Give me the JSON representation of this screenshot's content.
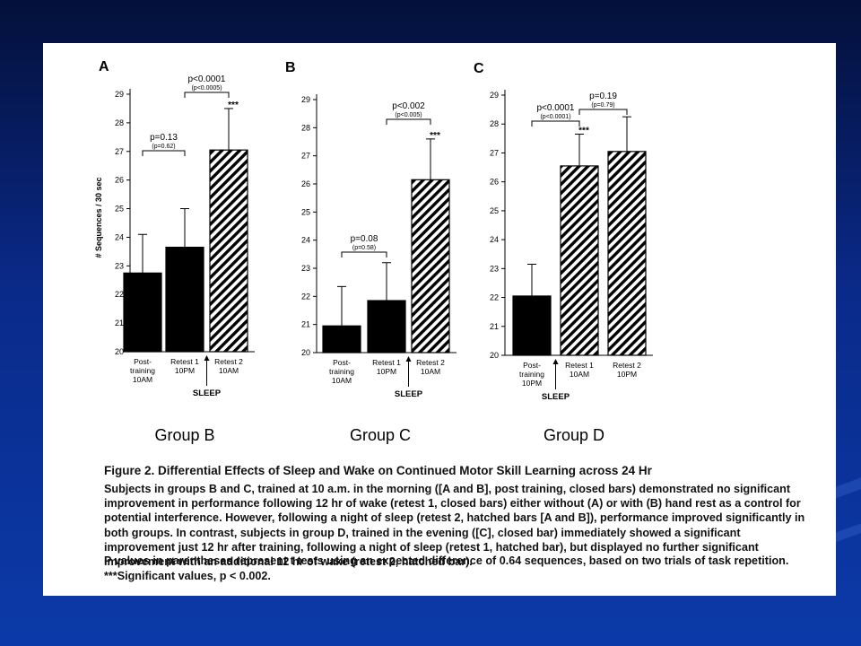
{
  "chart_data": [
    {
      "type": "bar",
      "panel_label": "A",
      "group_title": "Group B",
      "ylabel": "# Sequences / 30 sec",
      "ylim": [
        20,
        29
      ],
      "yticks": [
        20,
        21,
        22,
        23,
        24,
        25,
        26,
        27,
        28,
        29
      ],
      "categories": [
        [
          "Post-",
          "training",
          "10AM"
        ],
        [
          "Retest 1",
          "10PM"
        ],
        [
          "Retest 2",
          "10AM"
        ]
      ],
      "values": [
        22.75,
        23.65,
        27.05
      ],
      "errors": [
        1.35,
        1.35,
        1.45
      ],
      "hatched": [
        false,
        false,
        true
      ],
      "significance": [
        "",
        "",
        "***"
      ],
      "sleep_marker": {
        "label": "SLEEP",
        "after_index": 1
      },
      "comparisons": [
        {
          "from": 0,
          "to": 1,
          "text": "p=0.13",
          "subtext": "(p=0.62)"
        },
        {
          "from": 1,
          "to": 2,
          "text": "p<0.0001",
          "subtext": "(p<0.0005)"
        }
      ]
    },
    {
      "type": "bar",
      "panel_label": "B",
      "group_title": "Group C",
      "ylabel": "",
      "ylim": [
        20,
        29
      ],
      "yticks": [
        20,
        21,
        22,
        23,
        24,
        25,
        26,
        27,
        28,
        29
      ],
      "categories": [
        [
          "Post-",
          "training",
          "10AM"
        ],
        [
          "Retest 1",
          "10PM"
        ],
        [
          "Retest 2",
          "10AM"
        ]
      ],
      "values": [
        20.95,
        21.85,
        26.15
      ],
      "errors": [
        1.4,
        1.35,
        1.45
      ],
      "hatched": [
        false,
        false,
        true
      ],
      "significance": [
        "",
        "",
        "***"
      ],
      "sleep_marker": {
        "label": "SLEEP",
        "after_index": 1
      },
      "comparisons": [
        {
          "from": 0,
          "to": 1,
          "text": "p=0.08",
          "subtext": "(p=0.58)"
        },
        {
          "from": 1,
          "to": 2,
          "text": "p<0.002",
          "subtext": "(p<0.005)"
        }
      ]
    },
    {
      "type": "bar",
      "panel_label": "C",
      "group_title": "Group D",
      "ylabel": "",
      "ylim": [
        20,
        29
      ],
      "yticks": [
        20,
        21,
        22,
        23,
        24,
        25,
        26,
        27,
        28,
        29
      ],
      "categories": [
        [
          "Post-",
          "training",
          "10PM"
        ],
        [
          "Retest 1",
          "10AM"
        ],
        [
          "Retest 2",
          "10PM"
        ]
      ],
      "values": [
        22.05,
        26.55,
        27.05
      ],
      "errors": [
        1.1,
        1.1,
        1.2
      ],
      "hatched": [
        false,
        true,
        true
      ],
      "significance": [
        "",
        "***",
        ""
      ],
      "sleep_marker": {
        "label": "SLEEP",
        "after_index": 0
      },
      "comparisons": [
        {
          "from": 0,
          "to": 1,
          "text": "p<0.0001",
          "subtext": "(p<0.0001)"
        },
        {
          "from": 1,
          "to": 2,
          "text": "p=0.19",
          "subtext": "(p=0.79)"
        }
      ]
    }
  ],
  "caption": {
    "title": "Figure 2.  Differential Effects of Sleep and Wake on Continued Motor Skill Learning across 24 Hr",
    "text": "Subjects in groups B and C, trained at 10 a.m. in the morning ([A and B], post training, closed bars) demonstrated no significant improvement in performance following 12 hr of wake (retest 1, closed bars) either without (A) or with (B) hand rest as a control for potential interference. However, following a night of sleep (retest 2, hatched bars [A and B]), performance improved significantly in both groups. In contrast, subjects in group D, trained in the evening ([C], closed bar) immediately showed a significant improvement just 12 hr after training, following a night of sleep (retest 1, hatched bar), but displayed no further significant improvement with an additional 12 hr of wake (retest 2, hatched bar).",
    "note1": "P values in parentheses represent t tests using an expected difference of 0.64 sequences, based on two trials of task repetition.",
    "note2": "***Significant values, p < 0.002."
  },
  "colors": {
    "bar_fill": "#000000",
    "hatch": "#000000",
    "panel_background": "#ffffff",
    "slide_background": "#0b3aa8"
  }
}
